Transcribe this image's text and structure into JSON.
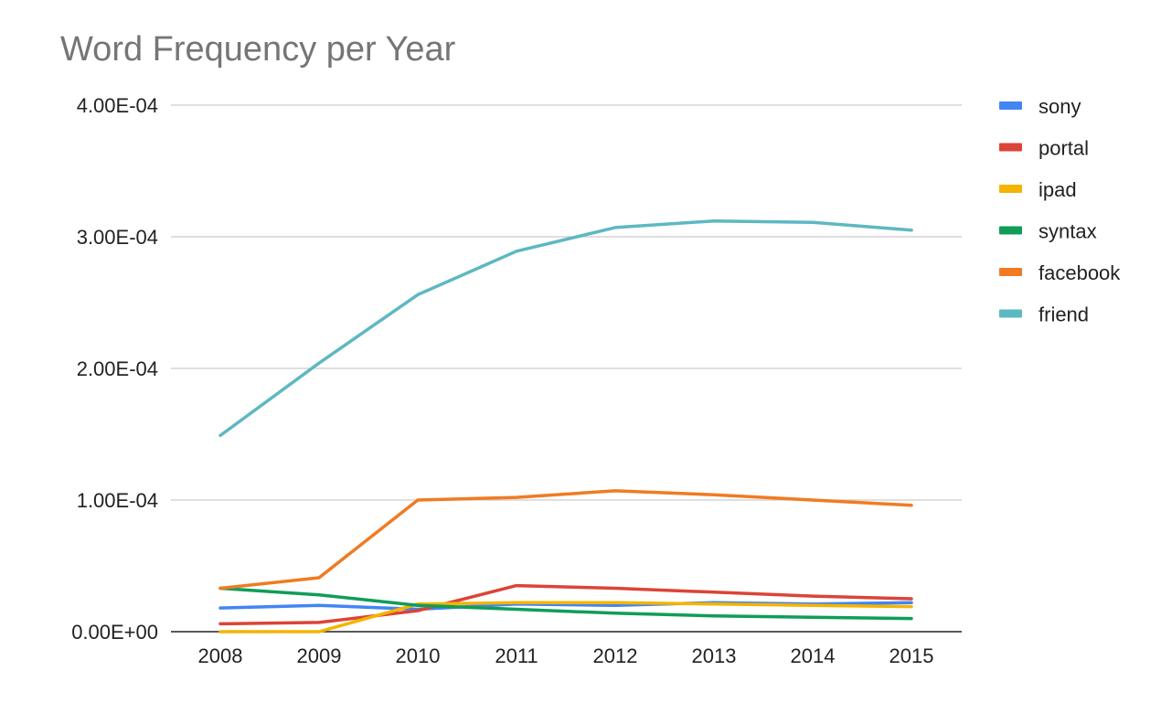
{
  "chart_data": {
    "type": "line",
    "title": "Word Frequency per Year",
    "xlabel": "",
    "ylabel": "",
    "x": [
      "2008",
      "2009",
      "2010",
      "2011",
      "2012",
      "2013",
      "2014",
      "2015"
    ],
    "ylim": [
      0,
      0.0004
    ],
    "y_ticks": [
      {
        "value": 0,
        "label": "0.00E+00"
      },
      {
        "value": 0.0001,
        "label": "1.00E-04"
      },
      {
        "value": 0.0002,
        "label": "2.00E-04"
      },
      {
        "value": 0.0003,
        "label": "3.00E-04"
      },
      {
        "value": 0.0004,
        "label": "4.00E-04"
      }
    ],
    "grid": true,
    "legend_position": "right",
    "series": [
      {
        "name": "sony",
        "color": "#4285F4",
        "values": [
          1.8e-05,
          2e-05,
          1.7e-05,
          2.1e-05,
          2e-05,
          2.2e-05,
          2.1e-05,
          2.2e-05
        ]
      },
      {
        "name": "portal",
        "color": "#DB4437",
        "values": [
          6e-06,
          7e-06,
          1.6e-05,
          3.5e-05,
          3.3e-05,
          3e-05,
          2.7e-05,
          2.5e-05
        ]
      },
      {
        "name": "ipad",
        "color": "#F4B400",
        "values": [
          0.0,
          0.0,
          2.1e-05,
          2.2e-05,
          2.2e-05,
          2.1e-05,
          2e-05,
          1.9e-05
        ]
      },
      {
        "name": "syntax",
        "color": "#0F9D58",
        "values": [
          3.3e-05,
          2.8e-05,
          2e-05,
          1.7e-05,
          1.4e-05,
          1.2e-05,
          1.1e-05,
          1e-05
        ]
      },
      {
        "name": "facebook",
        "color": "#F07B22",
        "values": [
          3.3e-05,
          4.1e-05,
          0.0001,
          0.000102,
          0.000107,
          0.000104,
          0.0001,
          9.6e-05
        ]
      },
      {
        "name": "friend",
        "color": "#5DB8C1",
        "values": [
          0.000149,
          0.000204,
          0.000256,
          0.000289,
          0.000307,
          0.000312,
          0.000311,
          0.000305
        ]
      }
    ]
  }
}
